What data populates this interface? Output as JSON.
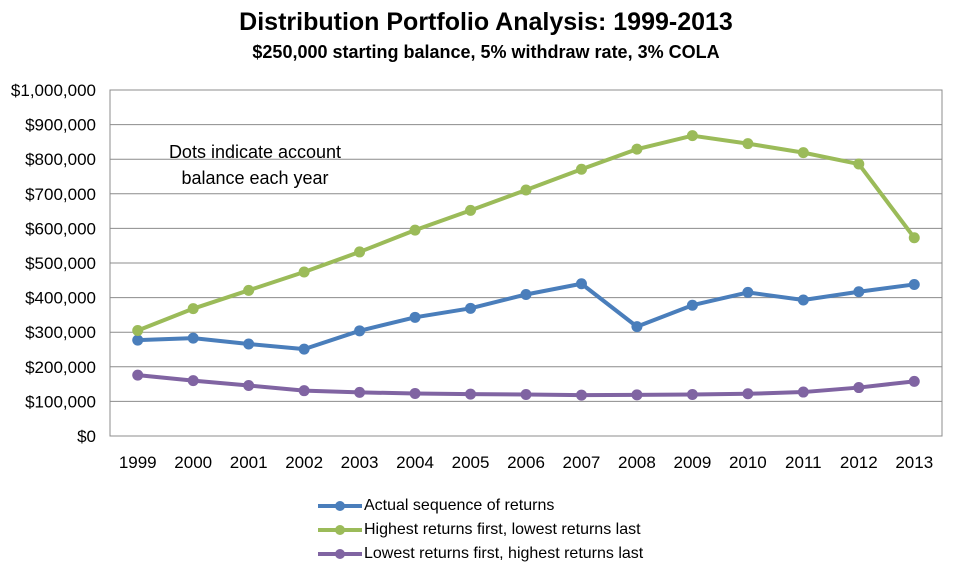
{
  "chart_data": {
    "type": "line",
    "title": "Distribution Portfolio Analysis:  1999-2013",
    "subtitle": "$250,000 starting balance, 5% withdraw rate, 3% COLA",
    "annotation": [
      "Dots indicate account",
      "balance each year"
    ],
    "categories": [
      "1999",
      "2000",
      "2001",
      "2002",
      "2003",
      "2004",
      "2005",
      "2006",
      "2007",
      "2008",
      "2009",
      "2010",
      "2011",
      "2012",
      "2013"
    ],
    "y_tick_labels": [
      "$0",
      "$100,000",
      "$200,000",
      "$300,000",
      "$400,000",
      "$500,000",
      "$600,000",
      "$700,000",
      "$800,000",
      "$900,000",
      "$1,000,000"
    ],
    "ylim": [
      0,
      1000000
    ],
    "grid": true,
    "legend_position": "bottom",
    "series": [
      {
        "name": "Actual sequence of returns",
        "color": "#4a7ebb",
        "values": [
          277000,
          283000,
          266000,
          251000,
          304000,
          343000,
          369000,
          409000,
          440000,
          316000,
          378000,
          415000,
          393000,
          417000,
          438000
        ]
      },
      {
        "name": "Highest returns first, lowest returns last",
        "color": "#9bbb59",
        "values": [
          305000,
          368000,
          421000,
          474000,
          532000,
          595000,
          652000,
          711000,
          771000,
          829000,
          868000,
          845000,
          819000,
          786000,
          573000
        ]
      },
      {
        "name": "Lowest returns first, highest returns last",
        "color": "#8064a2",
        "values": [
          176000,
          160000,
          146000,
          131000,
          126000,
          123000,
          121000,
          120000,
          118000,
          119000,
          120000,
          122000,
          127000,
          140000,
          158000
        ]
      }
    ]
  }
}
